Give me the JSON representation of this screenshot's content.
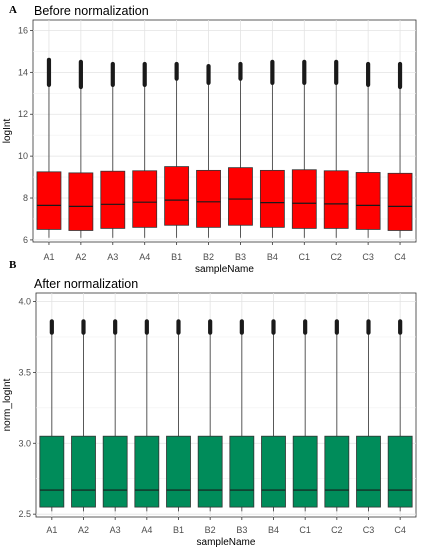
{
  "chart_data": [
    {
      "type": "box",
      "panel_letter": "A",
      "title": "Before normalization",
      "xlabel": "sampleName",
      "ylabel": "logInt",
      "ylim": [
        5.9,
        16.5
      ],
      "yticks": [
        6,
        8,
        10,
        12,
        14,
        16
      ],
      "grid": true,
      "categories": [
        "A1",
        "A2",
        "A3",
        "A4",
        "B1",
        "B2",
        "B3",
        "B4",
        "C1",
        "C2",
        "C3",
        "C4"
      ],
      "fill": "#ff0000",
      "boxes": [
        {
          "whisker_low": 6.1,
          "q1": 6.5,
          "median": 7.65,
          "q3": 9.25,
          "whisker_high": 13.4,
          "outlier_max": 14.6
        },
        {
          "whisker_low": 6.1,
          "q1": 6.45,
          "median": 7.6,
          "q3": 9.2,
          "whisker_high": 13.3,
          "outlier_max": 14.5
        },
        {
          "whisker_low": 6.1,
          "q1": 6.55,
          "median": 7.7,
          "q3": 9.28,
          "whisker_high": 13.4,
          "outlier_max": 14.4
        },
        {
          "whisker_low": 6.1,
          "q1": 6.6,
          "median": 7.8,
          "q3": 9.3,
          "whisker_high": 13.4,
          "outlier_max": 14.4
        },
        {
          "whisker_low": 6.1,
          "q1": 6.7,
          "median": 7.9,
          "q3": 9.5,
          "whisker_high": 13.7,
          "outlier_max": 14.4
        },
        {
          "whisker_low": 6.1,
          "q1": 6.6,
          "median": 7.82,
          "q3": 9.32,
          "whisker_high": 13.5,
          "outlier_max": 14.3
        },
        {
          "whisker_low": 6.1,
          "q1": 6.7,
          "median": 7.95,
          "q3": 9.45,
          "whisker_high": 13.7,
          "outlier_max": 14.4
        },
        {
          "whisker_low": 6.1,
          "q1": 6.6,
          "median": 7.78,
          "q3": 9.32,
          "whisker_high": 13.5,
          "outlier_max": 14.5
        },
        {
          "whisker_low": 6.1,
          "q1": 6.55,
          "median": 7.75,
          "q3": 9.35,
          "whisker_high": 13.5,
          "outlier_max": 14.5
        },
        {
          "whisker_low": 6.1,
          "q1": 6.55,
          "median": 7.72,
          "q3": 9.3,
          "whisker_high": 13.5,
          "outlier_max": 14.5
        },
        {
          "whisker_low": 6.1,
          "q1": 6.5,
          "median": 7.65,
          "q3": 9.22,
          "whisker_high": 13.4,
          "outlier_max": 14.4
        },
        {
          "whisker_low": 6.1,
          "q1": 6.45,
          "median": 7.6,
          "q3": 9.18,
          "whisker_high": 13.3,
          "outlier_max": 14.4
        }
      ]
    },
    {
      "type": "box",
      "panel_letter": "B",
      "title": "After normalization",
      "xlabel": "sampleName",
      "ylabel": "norm_logInt",
      "ylim": [
        2.48,
        4.06
      ],
      "yticks": [
        2.5,
        3.0,
        3.5,
        4.0
      ],
      "ytick_labels": [
        "2.5",
        "3.0",
        "3.5",
        "4.0"
      ],
      "grid": true,
      "categories": [
        "A1",
        "A2",
        "A3",
        "A4",
        "B1",
        "B2",
        "B3",
        "B4",
        "C1",
        "C2",
        "C3",
        "C4"
      ],
      "fill": "#008c5a",
      "boxes": [
        {
          "whisker_low": 2.52,
          "q1": 2.55,
          "median": 2.67,
          "q3": 3.05,
          "whisker_high": 3.78,
          "outlier_max": 3.86
        },
        {
          "whisker_low": 2.52,
          "q1": 2.55,
          "median": 2.67,
          "q3": 3.05,
          "whisker_high": 3.78,
          "outlier_max": 3.86
        },
        {
          "whisker_low": 2.52,
          "q1": 2.55,
          "median": 2.67,
          "q3": 3.05,
          "whisker_high": 3.78,
          "outlier_max": 3.86
        },
        {
          "whisker_low": 2.52,
          "q1": 2.55,
          "median": 2.67,
          "q3": 3.05,
          "whisker_high": 3.78,
          "outlier_max": 3.86
        },
        {
          "whisker_low": 2.52,
          "q1": 2.55,
          "median": 2.67,
          "q3": 3.05,
          "whisker_high": 3.78,
          "outlier_max": 3.86
        },
        {
          "whisker_low": 2.52,
          "q1": 2.55,
          "median": 2.67,
          "q3": 3.05,
          "whisker_high": 3.78,
          "outlier_max": 3.86
        },
        {
          "whisker_low": 2.52,
          "q1": 2.55,
          "median": 2.67,
          "q3": 3.05,
          "whisker_high": 3.78,
          "outlier_max": 3.86
        },
        {
          "whisker_low": 2.52,
          "q1": 2.55,
          "median": 2.67,
          "q3": 3.05,
          "whisker_high": 3.78,
          "outlier_max": 3.86
        },
        {
          "whisker_low": 2.52,
          "q1": 2.55,
          "median": 2.67,
          "q3": 3.05,
          "whisker_high": 3.78,
          "outlier_max": 3.86
        },
        {
          "whisker_low": 2.52,
          "q1": 2.55,
          "median": 2.67,
          "q3": 3.05,
          "whisker_high": 3.78,
          "outlier_max": 3.86
        },
        {
          "whisker_low": 2.52,
          "q1": 2.55,
          "median": 2.67,
          "q3": 3.05,
          "whisker_high": 3.78,
          "outlier_max": 3.86
        },
        {
          "whisker_low": 2.52,
          "q1": 2.55,
          "median": 2.67,
          "q3": 3.05,
          "whisker_high": 3.78,
          "outlier_max": 3.86
        }
      ]
    }
  ]
}
